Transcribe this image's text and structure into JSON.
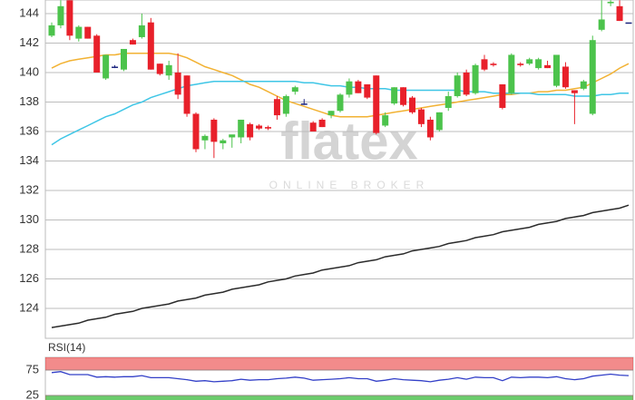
{
  "watermark": {
    "logo": "flatex",
    "tagline": "ONLINE BROKER"
  },
  "chart_data": [
    {
      "type": "candlestick",
      "ylim": [
        121.97,
        144.92
      ],
      "yticks": [
        124,
        126,
        128,
        130,
        132,
        134,
        136,
        138,
        140,
        142,
        144
      ],
      "grid": true,
      "up_color": "#4cc34c",
      "down_color": "#e8202a",
      "flat_color": "#1a237e",
      "open": [
        142.5,
        143.2,
        144.9,
        142.3,
        143.1,
        142.5,
        139.6,
        140.4,
        140.2,
        142.2,
        142.4,
        143.4,
        140.6,
        139.8,
        140.0,
        139.8,
        137.2,
        135.4,
        136.8,
        135.2,
        135.6,
        135.6,
        136.5,
        136.4,
        136.3,
        138.2,
        137.2,
        138.7,
        137.9,
        136.6,
        136.8,
        137.1,
        137.4,
        138.5,
        139.4,
        139.2,
        139.8,
        136.4,
        137.9,
        139.0,
        138.3,
        137.5,
        136.8,
        136.1,
        137.6,
        138.4,
        140.0,
        138.6,
        140.9,
        140.6,
        139.2,
        138.6,
        140.6,
        140.6,
        140.3,
        140.5,
        139.1,
        140.4,
        138.8,
        138.9,
        137.2,
        142.9,
        144.7,
        144.5,
        143.4
      ],
      "high": [
        143.4,
        144.9,
        144.9,
        143.2,
        143.1,
        142.6,
        141.2,
        140.5,
        141.6,
        142.3,
        144.0,
        143.7,
        140.6,
        140.8,
        141.3,
        139.8,
        137.3,
        135.8,
        136.9,
        135.5,
        135.7,
        136.8,
        136.6,
        136.5,
        136.4,
        138.4,
        138.5,
        139.1,
        138.2,
        136.7,
        136.9,
        137.4,
        138.6,
        139.6,
        139.5,
        139.2,
        139.8,
        137.3,
        139.0,
        139.0,
        138.4,
        137.6,
        137.0,
        137.3,
        138.7,
        140.0,
        140.2,
        140.6,
        141.2,
        140.7,
        139.2,
        141.3,
        140.7,
        141.0,
        141.0,
        140.8,
        141.2,
        140.7,
        138.8,
        139.5,
        142.5,
        144.9,
        144.9,
        144.9,
        143.4
      ],
      "low": [
        142.4,
        143.0,
        142.2,
        142.1,
        142.3,
        140.0,
        139.5,
        140.3,
        140.1,
        141.9,
        142.3,
        140.2,
        139.8,
        139.5,
        138.2,
        137.0,
        134.6,
        134.8,
        134.2,
        134.8,
        134.9,
        135.2,
        135.4,
        136.1,
        136.1,
        136.8,
        137.0,
        138.5,
        137.8,
        136.0,
        136.3,
        136.9,
        137.3,
        138.3,
        138.6,
        138.2,
        135.8,
        136.3,
        137.8,
        137.7,
        137.2,
        136.3,
        135.4,
        136.0,
        137.4,
        138.3,
        138.4,
        138.5,
        140.1,
        140.4,
        137.5,
        138.5,
        140.4,
        140.5,
        140.2,
        140.3,
        139.0,
        138.9,
        136.5,
        138.8,
        137.1,
        142.8,
        144.5,
        143.5,
        143.4
      ],
      "close": [
        143.2,
        144.5,
        142.5,
        143.1,
        142.3,
        140.0,
        141.2,
        140.4,
        141.6,
        141.9,
        143.2,
        140.2,
        139.9,
        140.5,
        138.5,
        137.2,
        134.8,
        135.7,
        135.3,
        135.4,
        135.8,
        136.8,
        135.6,
        136.2,
        136.2,
        137.1,
        138.4,
        139.0,
        137.9,
        136.0,
        136.3,
        137.4,
        138.5,
        139.4,
        138.6,
        138.3,
        135.9,
        137.1,
        139.0,
        137.8,
        137.3,
        136.5,
        135.6,
        137.3,
        138.4,
        139.8,
        138.5,
        140.5,
        140.2,
        140.5,
        137.6,
        141.2,
        140.5,
        140.9,
        140.9,
        140.3,
        141.2,
        139.0,
        138.6,
        139.4,
        142.2,
        143.6,
        144.8,
        143.5,
        143.4
      ],
      "overlays": [
        {
          "color": "#f2b233",
          "values": [
            140.3,
            140.6,
            140.8,
            140.9,
            141.0,
            141.1,
            141.2,
            141.2,
            141.3,
            141.3,
            141.3,
            141.3,
            141.3,
            141.3,
            141.2,
            141.0,
            140.7,
            140.4,
            140.2,
            140.0,
            139.8,
            139.5,
            139.2,
            139.0,
            138.7,
            138.4,
            138.1,
            137.9,
            137.7,
            137.5,
            137.3,
            137.1,
            137.0,
            137.0,
            137.0,
            137.0,
            137.1,
            137.2,
            137.3,
            137.4,
            137.5,
            137.6,
            137.7,
            137.8,
            137.9,
            138.0,
            138.1,
            138.2,
            138.3,
            138.4,
            138.5,
            138.5,
            138.6,
            138.6,
            138.7,
            138.7,
            138.8,
            138.8,
            138.9,
            139.0,
            139.3,
            139.6,
            139.9,
            140.3,
            140.6
          ]
        },
        {
          "color": "#3fc6e6",
          "values": [
            135.1,
            135.5,
            135.8,
            136.1,
            136.4,
            136.7,
            137.0,
            137.2,
            137.5,
            137.8,
            138.0,
            138.3,
            138.5,
            138.7,
            138.9,
            139.1,
            139.2,
            139.3,
            139.4,
            139.4,
            139.4,
            139.4,
            139.4,
            139.4,
            139.4,
            139.4,
            139.4,
            139.4,
            139.3,
            139.3,
            139.2,
            139.1,
            139.1,
            139.0,
            139.0,
            138.9,
            138.9,
            138.9,
            138.8,
            138.8,
            138.8,
            138.8,
            138.8,
            138.8,
            138.8,
            138.8,
            138.7,
            138.7,
            138.7,
            138.6,
            138.6,
            138.6,
            138.6,
            138.6,
            138.5,
            138.5,
            138.5,
            138.5,
            138.4,
            138.4,
            138.4,
            138.5,
            138.5,
            138.6,
            138.6
          ]
        },
        {
          "color": "#2b2b2b",
          "values": [
            122.7,
            122.8,
            122.9,
            123.0,
            123.2,
            123.3,
            123.4,
            123.6,
            123.7,
            123.8,
            124.0,
            124.1,
            124.2,
            124.3,
            124.5,
            124.6,
            124.7,
            124.9,
            125.0,
            125.1,
            125.3,
            125.4,
            125.5,
            125.6,
            125.8,
            125.9,
            126.0,
            126.2,
            126.3,
            126.4,
            126.6,
            126.7,
            126.8,
            126.9,
            127.1,
            127.2,
            127.3,
            127.5,
            127.6,
            127.7,
            127.9,
            128.0,
            128.1,
            128.2,
            128.4,
            128.5,
            128.6,
            128.8,
            128.9,
            129.0,
            129.2,
            129.3,
            129.4,
            129.5,
            129.7,
            129.8,
            129.9,
            130.1,
            130.2,
            130.3,
            130.5,
            130.6,
            130.7,
            130.8,
            131.0
          ]
        }
      ]
    },
    {
      "type": "line",
      "title": "RSI(14)",
      "ylim": [
        16,
        100
      ],
      "yticks": [
        25,
        75
      ],
      "color": "#3340c8",
      "bands": [
        {
          "from": 75,
          "to": 100,
          "color": "#f28b8b"
        },
        {
          "from": 0,
          "to": 25,
          "color": "#6ccc6c"
        }
      ],
      "values": [
        70,
        72,
        66,
        66,
        66,
        61,
        62,
        61,
        62,
        62,
        64,
        60,
        60,
        60,
        58,
        56,
        53,
        54,
        52,
        53,
        54,
        57,
        55,
        56,
        56,
        58,
        59,
        61,
        59,
        55,
        56,
        57,
        58,
        60,
        58,
        58,
        53,
        55,
        58,
        56,
        55,
        54,
        52,
        55,
        57,
        60,
        57,
        61,
        60,
        60,
        54,
        61,
        60,
        61,
        61,
        60,
        62,
        58,
        56,
        58,
        63,
        65,
        67,
        65,
        64
      ]
    }
  ]
}
